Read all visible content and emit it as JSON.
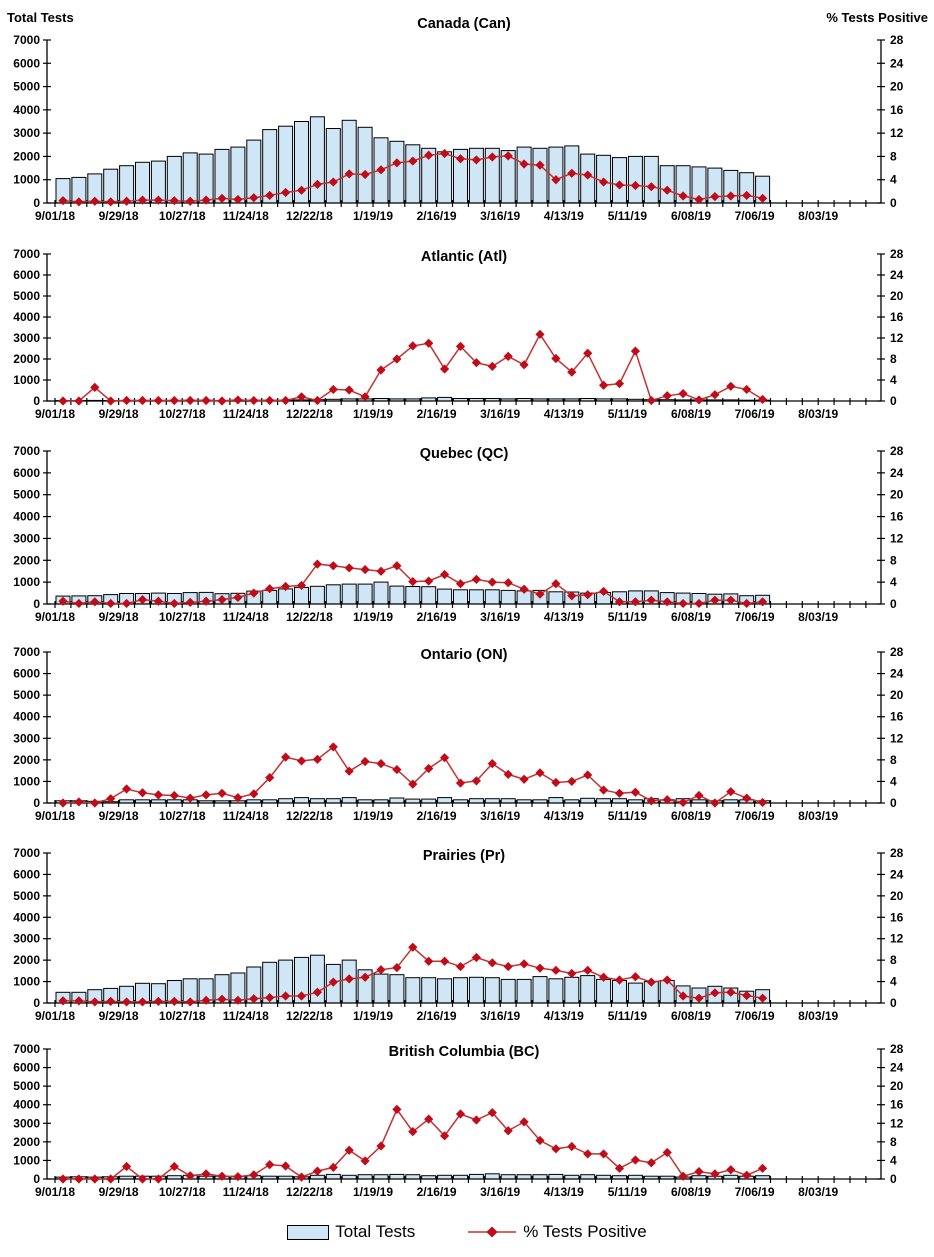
{
  "page": {
    "background": "#ffffff"
  },
  "axis_labels": {
    "left": "Total Tests",
    "right": "% Tests Positive"
  },
  "legend": {
    "total_tests": "Total Tests",
    "pct_positive": "% Tests Positive"
  },
  "colors": {
    "bar_fill": "#cfe6f7",
    "bar_stroke": "#000000",
    "line": "#c73030",
    "marker": "#c00b18",
    "axis": "#000000"
  },
  "x_tick_labels": [
    "9/01/18",
    "9/29/18",
    "10/27/18",
    "11/24/18",
    "12/22/18",
    "1/19/19",
    "2/16/19",
    "3/16/19",
    "4/13/19",
    "5/11/19",
    "6/08/19",
    "7/06/19",
    "8/03/19"
  ],
  "weeks_per_label": 4,
  "left_axis": {
    "min": 0,
    "max": 7000,
    "step": 1000
  },
  "right_axis": {
    "min": 0,
    "max": 28,
    "step": 4
  },
  "chart_data": [
    {
      "type": "bar",
      "title": "Canada (Can)",
      "series": [
        {
          "name": "Total Tests",
          "type": "bar",
          "axis": "left",
          "values": [
            1050,
            1100,
            1250,
            1450,
            1600,
            1750,
            1800,
            2000,
            2150,
            2100,
            2300,
            2400,
            2700,
            3150,
            3300,
            3500,
            3700,
            3200,
            3550,
            3250,
            2800,
            2650,
            2500,
            2350,
            2200,
            2300,
            2350,
            2350,
            2250,
            2400,
            2350,
            2400,
            2450,
            2100,
            2050,
            1950,
            2000,
            2000,
            1600,
            1600,
            1550,
            1500,
            1400,
            1300,
            1150
          ]
        },
        {
          "name": "% Tests Positive",
          "type": "line",
          "axis": "right",
          "values": [
            0.4,
            0.2,
            0.3,
            0.2,
            0.3,
            0.5,
            0.5,
            0.4,
            0.3,
            0.5,
            0.8,
            0.6,
            0.9,
            1.3,
            1.8,
            2.2,
            3.2,
            3.6,
            5.0,
            4.9,
            5.7,
            6.9,
            7.2,
            8.2,
            8.5,
            7.6,
            7.4,
            7.9,
            8.1,
            6.7,
            6.5,
            4.0,
            5.1,
            4.8,
            3.6,
            3.1,
            3.0,
            2.8,
            2.2,
            1.2,
            0.6,
            1.1,
            1.2,
            1.3,
            0.8
          ]
        }
      ]
    },
    {
      "type": "bar",
      "title": "Atlantic (Atl)",
      "series": [
        {
          "name": "Total Tests",
          "type": "bar",
          "axis": "left",
          "values": [
            20,
            20,
            30,
            20,
            30,
            30,
            30,
            30,
            40,
            40,
            30,
            40,
            40,
            40,
            40,
            50,
            60,
            80,
            100,
            100,
            120,
            100,
            100,
            150,
            170,
            120,
            120,
            120,
            100,
            120,
            100,
            100,
            100,
            120,
            100,
            100,
            80,
            60,
            60,
            50,
            50,
            50,
            50,
            40,
            40
          ]
        },
        {
          "name": "% Tests Positive",
          "type": "line",
          "axis": "right",
          "values": [
            0,
            0,
            2.6,
            0,
            0.1,
            0.1,
            0.1,
            0.1,
            0.1,
            0.1,
            0,
            0.2,
            0.1,
            0.1,
            0.1,
            0.8,
            0.1,
            2.2,
            2.1,
            0.8,
            5.9,
            8.0,
            10.5,
            11.0,
            6.1,
            10.4,
            7.3,
            6.6,
            8.5,
            6.9,
            12.7,
            8.1,
            5.5,
            9.1,
            3.0,
            3.3,
            9.5,
            0.1,
            1.0,
            1.4,
            0.2,
            1.2,
            2.8,
            2.2,
            0.3
          ]
        }
      ]
    },
    {
      "type": "bar",
      "title": "Quebec (QC)",
      "series": [
        {
          "name": "Total Tests",
          "type": "bar",
          "axis": "left",
          "values": [
            360,
            370,
            380,
            430,
            480,
            480,
            500,
            480,
            520,
            530,
            470,
            490,
            590,
            620,
            690,
            760,
            810,
            880,
            910,
            910,
            1000,
            820,
            800,
            790,
            680,
            650,
            650,
            650,
            620,
            600,
            620,
            560,
            550,
            500,
            530,
            560,
            600,
            600,
            520,
            500,
            480,
            450,
            460,
            380,
            400
          ]
        },
        {
          "name": "% Tests Positive",
          "type": "line",
          "axis": "right",
          "values": [
            0.5,
            0.1,
            0.4,
            0.1,
            0.1,
            0.8,
            0.5,
            0.1,
            0.3,
            0.5,
            0.8,
            1.2,
            2.0,
            2.8,
            3.2,
            3.4,
            7.3,
            7.0,
            6.6,
            6.3,
            6.0,
            7.0,
            4.1,
            4.2,
            5.4,
            3.7,
            4.5,
            4.0,
            3.9,
            2.7,
            1.8,
            3.7,
            1.5,
            1.7,
            2.3,
            0.4,
            0.4,
            0.7,
            0.4,
            0.1,
            0.1,
            0.7,
            0.7,
            0.1,
            0.4
          ]
        }
      ]
    },
    {
      "type": "bar",
      "title": "Ontario (ON)",
      "series": [
        {
          "name": "Total Tests",
          "type": "bar",
          "axis": "left",
          "values": [
            100,
            100,
            80,
            60,
            150,
            150,
            150,
            150,
            150,
            100,
            100,
            100,
            150,
            150,
            200,
            250,
            200,
            200,
            250,
            150,
            150,
            230,
            180,
            180,
            250,
            150,
            200,
            200,
            200,
            150,
            150,
            250,
            150,
            220,
            200,
            200,
            150,
            200,
            150,
            200,
            150,
            100,
            150,
            150,
            100
          ]
        },
        {
          "name": "% Tests Positive",
          "type": "line",
          "axis": "right",
          "values": [
            0,
            0.2,
            0,
            0.8,
            2.6,
            1.9,
            1.5,
            1.4,
            0.9,
            1.5,
            1.8,
            1.0,
            1.7,
            4.7,
            8.5,
            7.8,
            8.1,
            10.4,
            5.9,
            7.7,
            7.3,
            6.2,
            3.5,
            6.4,
            8.4,
            3.7,
            4.1,
            7.3,
            5.3,
            4.4,
            5.6,
            3.8,
            4.0,
            5.2,
            2.4,
            1.8,
            2.0,
            0.4,
            0.6,
            0.1,
            1.4,
            0,
            2.1,
            0.9,
            0.1
          ]
        }
      ]
    },
    {
      "type": "bar",
      "title": "Prairies (Pr)",
      "series": [
        {
          "name": "Total Tests",
          "type": "bar",
          "axis": "left",
          "values": [
            500,
            500,
            620,
            680,
            780,
            920,
            900,
            1050,
            1130,
            1130,
            1320,
            1400,
            1680,
            1900,
            2000,
            2130,
            2230,
            1800,
            2000,
            1550,
            1350,
            1320,
            1180,
            1180,
            1130,
            1180,
            1200,
            1180,
            1100,
            1100,
            1230,
            1130,
            1200,
            1280,
            1100,
            1050,
            930,
            1000,
            1050,
            800,
            700,
            780,
            700,
            550,
            620
          ]
        },
        {
          "name": "% Tests Positive",
          "type": "line",
          "axis": "right",
          "values": [
            0.4,
            0.4,
            0.2,
            0.3,
            0.2,
            0.2,
            0.3,
            0.3,
            0.2,
            0.5,
            0.7,
            0.5,
            0.8,
            1.0,
            1.3,
            1.3,
            2.0,
            3.9,
            4.5,
            4.8,
            6.2,
            6.6,
            10.4,
            7.8,
            7.8,
            6.8,
            8.5,
            7.5,
            6.8,
            7.3,
            6.5,
            6.1,
            5.5,
            6.1,
            4.8,
            4.3,
            4.9,
            3.9,
            4.3,
            1.3,
            0.9,
            1.9,
            2.0,
            1.4,
            0.9
          ]
        }
      ]
    },
    {
      "type": "bar",
      "title": "British Columbia (BC)",
      "series": [
        {
          "name": "Total Tests",
          "type": "bar",
          "axis": "left",
          "values": [
            100,
            120,
            100,
            120,
            150,
            150,
            150,
            180,
            200,
            150,
            150,
            150,
            180,
            150,
            150,
            120,
            200,
            250,
            200,
            230,
            230,
            250,
            230,
            180,
            200,
            200,
            250,
            280,
            230,
            230,
            230,
            250,
            200,
            230,
            200,
            180,
            200,
            150,
            150,
            100,
            180,
            150,
            200,
            150,
            180
          ]
        },
        {
          "name": "% Tests Positive",
          "type": "line",
          "axis": "right",
          "values": [
            0,
            0,
            0,
            0,
            2.7,
            0,
            0,
            2.7,
            0.7,
            1.1,
            0.6,
            0.5,
            0.9,
            3.1,
            2.8,
            0.4,
            1.7,
            2.5,
            6.2,
            3.9,
            7.1,
            15.0,
            10.2,
            12.9,
            9.3,
            14.0,
            12.7,
            14.3,
            10.4,
            12.3,
            8.3,
            6.5,
            7.0,
            5.4,
            5.4,
            2.3,
            4.1,
            3.5,
            5.7,
            0.6,
            1.6,
            1.1,
            2.0,
            0.8,
            2.3
          ]
        }
      ]
    }
  ]
}
